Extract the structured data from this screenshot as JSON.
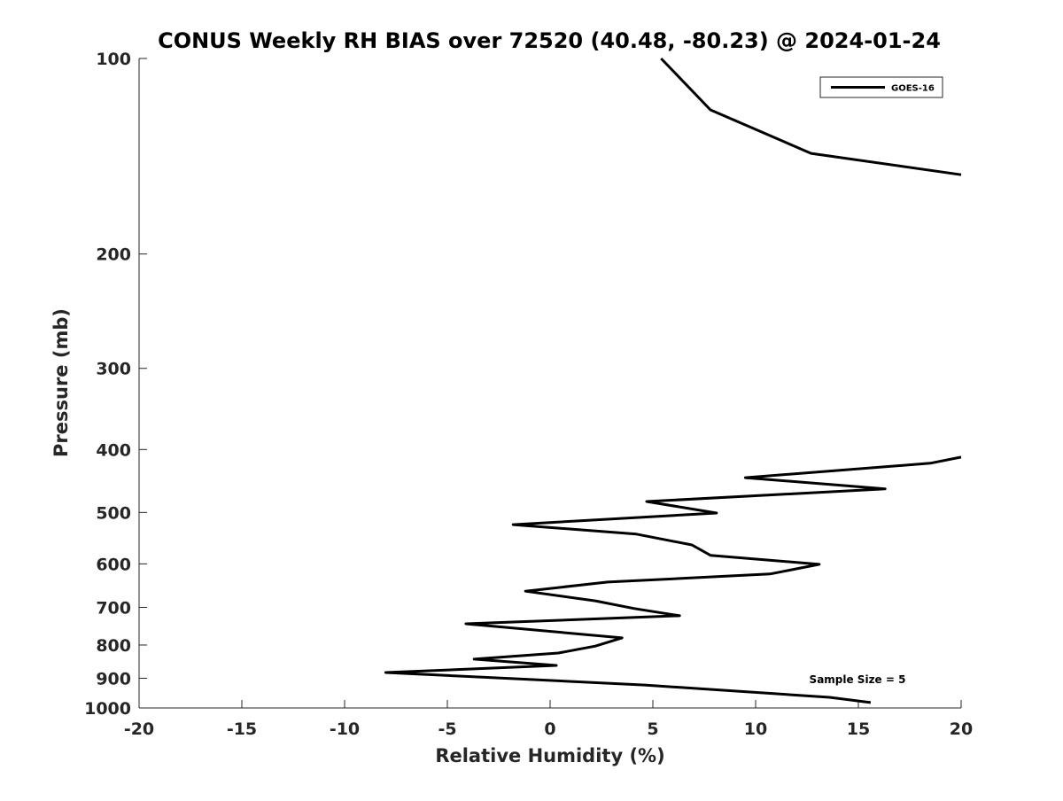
{
  "chart_data": {
    "type": "line",
    "title": "CONUS Weekly RH BIAS over 72520 (40.48, -80.23) @ 2024-01-24",
    "xlabel": "Relative Humidity (%)",
    "ylabel": "Pressure (mb)",
    "xlim": [
      -20,
      20
    ],
    "ylim": [
      100,
      1000
    ],
    "yscale": "log",
    "y_reversed": true,
    "xticks": [
      -20,
      -15,
      -10,
      -5,
      0,
      5,
      10,
      15,
      20
    ],
    "xtick_labels": [
      "-20",
      "-15",
      "-10",
      "-5",
      "0",
      "5",
      "10",
      "15",
      "20"
    ],
    "yticks": [
      100,
      200,
      300,
      400,
      500,
      600,
      700,
      800,
      900,
      1000
    ],
    "ytick_labels": [
      "100",
      "200",
      "300",
      "400",
      "500",
      "600",
      "700",
      "800",
      "900",
      "1000"
    ],
    "grid": false,
    "legend": {
      "position": "top-right",
      "entries": [
        "GOES-16"
      ]
    },
    "annotation": "Sample Size = 5",
    "series": [
      {
        "name": "GOES-16",
        "color": "#000000",
        "points": [
          [
            5.4,
            100
          ],
          [
            7.8,
            120
          ],
          [
            12.7,
            140
          ],
          [
            20.0,
            151
          ],
          null,
          [
            20.0,
            411
          ],
          [
            18.5,
            420
          ],
          [
            9.5,
            442
          ],
          [
            16.3,
            460
          ],
          [
            4.7,
            481
          ],
          [
            8.1,
            501
          ],
          [
            -1.8,
            522
          ],
          [
            4.2,
            540
          ],
          [
            6.9,
            561
          ],
          [
            7.8,
            582
          ],
          [
            13.1,
            601
          ],
          [
            10.7,
            622
          ],
          [
            2.8,
            640
          ],
          [
            -1.2,
            661
          ],
          [
            2.2,
            684
          ],
          [
            4.1,
            703
          ],
          [
            6.3,
            721
          ],
          [
            -4.1,
            742
          ],
          [
            3.5,
            780
          ],
          [
            2.2,
            803
          ],
          [
            0.4,
            823
          ],
          [
            -3.7,
            841
          ],
          [
            0.3,
            860
          ],
          [
            -8.0,
            882
          ],
          [
            4.6,
            922
          ],
          [
            13.6,
            963
          ],
          [
            15.6,
            981
          ]
        ]
      }
    ]
  }
}
